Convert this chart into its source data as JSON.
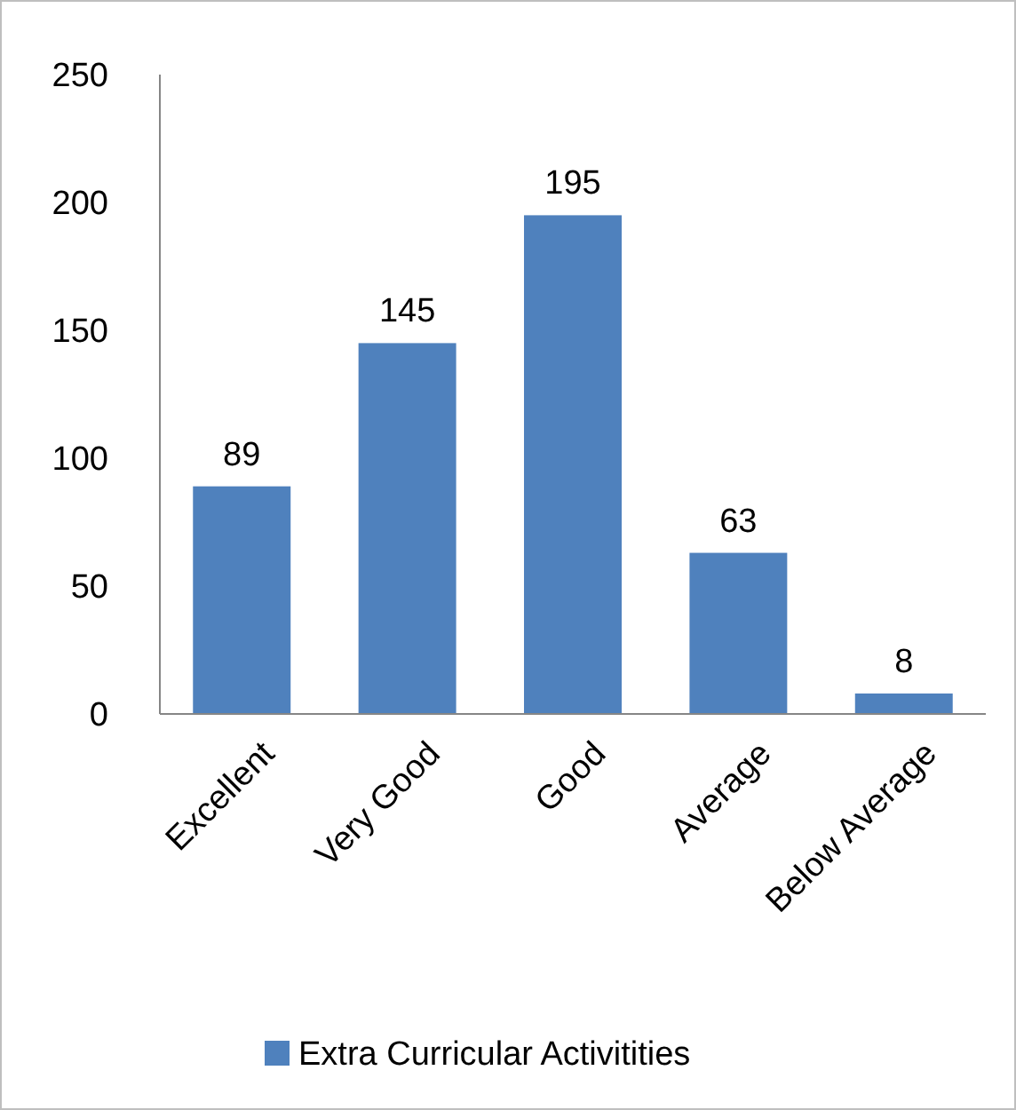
{
  "chart_data": {
    "type": "bar",
    "categories": [
      "Excellent",
      "Very Good",
      "Good",
      "Average",
      "Below Average"
    ],
    "series": [
      {
        "name": "Extra Curricular Activitities",
        "color": "#4f81bd",
        "values": [
          89,
          145,
          195,
          63,
          8
        ]
      }
    ],
    "ylim": [
      0,
      250
    ],
    "yticks": [
      0,
      50,
      100,
      150,
      200,
      250
    ],
    "data_labels": true,
    "legend": "bottom",
    "grid": false
  }
}
